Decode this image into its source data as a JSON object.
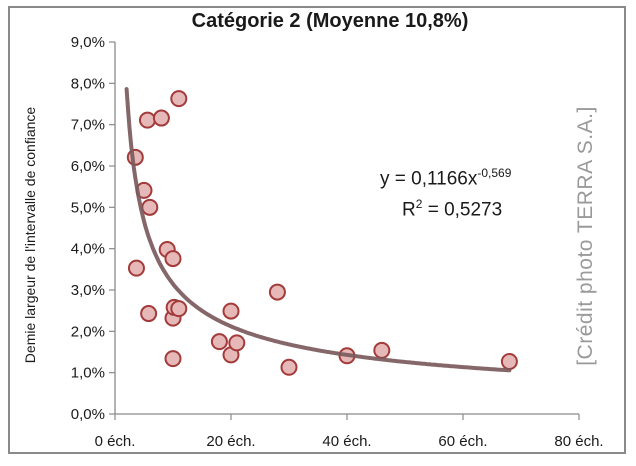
{
  "chart_data": {
    "type": "scatter",
    "title": "Catégorie 2 (Moyenne 10,8%)",
    "xlabel": "",
    "ylabel": "Demie largeur de l'intervalle de confiance",
    "xlim": [
      0,
      80
    ],
    "ylim": [
      0,
      0.09
    ],
    "x_ticks": [
      "0 éch.",
      "20 éch.",
      "40 éch.",
      "60 éch.",
      "80 éch."
    ],
    "y_ticks": [
      "0,0%",
      "1,0%",
      "2,0%",
      "3,0%",
      "4,0%",
      "5,0%",
      "6,0%",
      "7,0%",
      "8,0%",
      "9,0%"
    ],
    "grid": false,
    "points": [
      {
        "x": 3.5,
        "y": 0.0621
      },
      {
        "x": 3.7,
        "y": 0.0353
      },
      {
        "x": 5,
        "y": 0.0541
      },
      {
        "x": 5.6,
        "y": 0.0711
      },
      {
        "x": 5.8,
        "y": 0.0243
      },
      {
        "x": 6,
        "y": 0.05
      },
      {
        "x": 8,
        "y": 0.0716
      },
      {
        "x": 9,
        "y": 0.0398
      },
      {
        "x": 10,
        "y": 0.0376
      },
      {
        "x": 10,
        "y": 0.0232
      },
      {
        "x": 10,
        "y": 0.0134
      },
      {
        "x": 10.2,
        "y": 0.0258
      },
      {
        "x": 11,
        "y": 0.0255
      },
      {
        "x": 11,
        "y": 0.0763
      },
      {
        "x": 18,
        "y": 0.0175
      },
      {
        "x": 20,
        "y": 0.0249
      },
      {
        "x": 20,
        "y": 0.0143
      },
      {
        "x": 21,
        "y": 0.0172
      },
      {
        "x": 28,
        "y": 0.0295
      },
      {
        "x": 30,
        "y": 0.0113
      },
      {
        "x": 40,
        "y": 0.0141
      },
      {
        "x": 46,
        "y": 0.0154
      },
      {
        "x": 68,
        "y": 0.0127
      }
    ],
    "trendline": {
      "type": "power",
      "a": 0.1166,
      "b": -0.569,
      "equation_prefix": "y = 0,1166x",
      "equation_exponent": "-0,569",
      "r2_prefix": "R",
      "r2_exponent": "2",
      "r2_suffix": " = 0,5273"
    },
    "colors": {
      "marker_fill": "#e6b9b8",
      "marker_stroke": "#a33b3b",
      "trendline": "#7b5a5c",
      "axis": "#8a8a8a"
    }
  },
  "credit": "[Crédit photo TERRA S.A.]"
}
